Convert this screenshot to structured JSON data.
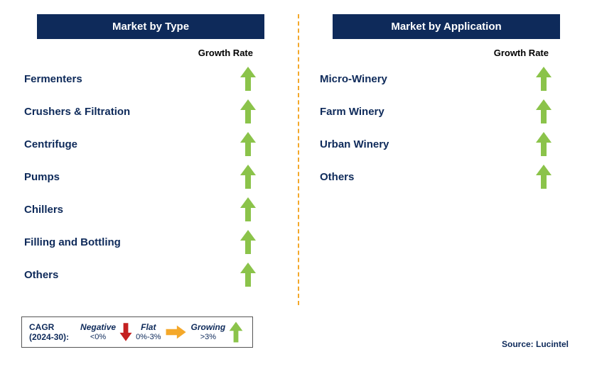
{
  "colors": {
    "navy": "#0e2a5a",
    "green": "#8bc34a",
    "red": "#c42020",
    "yellow": "#f4a82a",
    "white": "#ffffff",
    "black": "#000000"
  },
  "left_panel": {
    "title": "Market by Type",
    "growth_header": "Growth Rate",
    "rows": [
      {
        "label": "Fermenters",
        "trend": "up"
      },
      {
        "label": "Crushers & Filtration",
        "trend": "up"
      },
      {
        "label": "Centrifuge",
        "trend": "up"
      },
      {
        "label": "Pumps",
        "trend": "up"
      },
      {
        "label": "Chillers",
        "trend": "up"
      },
      {
        "label": "Filling and Bottling",
        "trend": "up"
      },
      {
        "label": "Others",
        "trend": "up"
      }
    ]
  },
  "right_panel": {
    "title": "Market by Application",
    "growth_header": "Growth Rate",
    "rows": [
      {
        "label": "Micro-Winery",
        "trend": "up"
      },
      {
        "label": "Farm Winery",
        "trend": "up"
      },
      {
        "label": "Urban Winery",
        "trend": "up"
      },
      {
        "label": "Others",
        "trend": "up"
      }
    ]
  },
  "legend": {
    "prefix_line1": "CAGR",
    "prefix_line2": "(2024-30):",
    "items": [
      {
        "label": "Negative",
        "sub": "<0%",
        "trend": "down"
      },
      {
        "label": "Flat",
        "sub": "0%-3%",
        "trend": "right"
      },
      {
        "label": "Growing",
        "sub": ">3%",
        "trend": "up"
      }
    ]
  },
  "source": "Source: Lucintel"
}
